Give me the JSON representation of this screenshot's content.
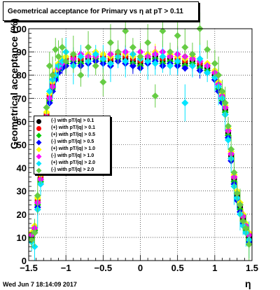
{
  "title": "Geometrical acceptance for Primary vs   η at pT > 0.11",
  "ylabel": "Geometrical acceptance (%)",
  "xlabel": "η",
  "timestamp": "Wed Jun  7 18:14:09 2017",
  "chart_data": {
    "type": "scatter",
    "title": "Geometrical acceptance for Primary vs   η at pT > 0.11",
    "xlabel": "η",
    "ylabel": "Geometrical acceptance (%)",
    "xlim": [
      -1.5,
      1.5
    ],
    "ylim": [
      0,
      100
    ],
    "xticks": [
      -1.5,
      -1,
      -0.5,
      0,
      0.5,
      1,
      1.5
    ],
    "yticks": [
      0,
      10,
      20,
      30,
      40,
      50,
      60,
      70,
      80,
      90,
      100
    ],
    "grid": true,
    "legend_position": "left-middle",
    "series": [
      {
        "name": "(-) with pT/|q| > 0.1",
        "color": "#000000",
        "marker": "circle",
        "x": [
          -1.46,
          -1.42,
          -1.38,
          -1.34,
          -1.3,
          -1.26,
          -1.22,
          -1.18,
          -1.14,
          -1.1,
          -1.05,
          -1.0,
          -0.9,
          -0.8,
          -0.7,
          -0.6,
          -0.5,
          -0.4,
          -0.3,
          -0.2,
          -0.1,
          0.0,
          0.1,
          0.2,
          0.3,
          0.4,
          0.5,
          0.6,
          0.7,
          0.8,
          0.9,
          1.0,
          1.05,
          1.1,
          1.14,
          1.18,
          1.22,
          1.26,
          1.3,
          1.34,
          1.38,
          1.42,
          1.46
        ],
        "y": [
          10,
          13,
          25,
          35,
          50,
          62,
          70,
          75,
          80,
          83,
          85,
          86,
          87,
          86,
          87,
          88,
          87,
          86,
          88,
          87,
          86,
          85,
          87,
          88,
          86,
          87,
          86,
          85,
          86,
          84,
          83,
          80,
          75,
          70,
          65,
          55,
          45,
          35,
          28,
          23,
          18,
          14,
          10
        ]
      },
      {
        "name": "(+) with pT/|q| > 0.1",
        "color": "#ff0000",
        "marker": "circle",
        "x": [
          -1.46,
          -1.42,
          -1.38,
          -1.34,
          -1.3,
          -1.26,
          -1.22,
          -1.18,
          -1.14,
          -1.1,
          -1.05,
          -1.0,
          -0.9,
          -0.8,
          -0.7,
          -0.6,
          -0.5,
          -0.4,
          -0.3,
          -0.2,
          -0.1,
          0.0,
          0.1,
          0.2,
          0.3,
          0.4,
          0.5,
          0.6,
          0.7,
          0.8,
          0.9,
          1.0,
          1.05,
          1.1,
          1.14,
          1.18,
          1.22,
          1.26,
          1.3,
          1.34,
          1.38,
          1.42,
          1.46
        ],
        "y": [
          11,
          14,
          26,
          36,
          51,
          63,
          71,
          76,
          81,
          84,
          86,
          87,
          88,
          87,
          88,
          89,
          88,
          87,
          89,
          88,
          87,
          86,
          88,
          89,
          87,
          88,
          87,
          86,
          87,
          85,
          84,
          81,
          76,
          71,
          66,
          56,
          46,
          36,
          29,
          24,
          19,
          15,
          11
        ]
      },
      {
        "name": "(+) with pT/|q| > 0.5",
        "color": "#00cc00",
        "marker": "diamond",
        "x": [
          -1.46,
          -1.42,
          -1.38,
          -1.34,
          -1.3,
          -1.26,
          -1.22,
          -1.18,
          -1.14,
          -1.1,
          -1.05,
          -1.0,
          -0.9,
          -0.8,
          -0.7,
          -0.6,
          -0.5,
          -0.4,
          -0.3,
          -0.2,
          -0.1,
          0.0,
          0.1,
          0.2,
          0.3,
          0.4,
          0.5,
          0.6,
          0.7,
          0.8,
          0.9,
          1.0,
          1.05,
          1.1,
          1.14,
          1.18,
          1.22,
          1.26,
          1.3,
          1.34,
          1.38,
          1.42,
          1.46
        ],
        "y": [
          10,
          13,
          24,
          34,
          49,
          61,
          69,
          74,
          79,
          82,
          84,
          85,
          86,
          85,
          86,
          87,
          86,
          85,
          87,
          86,
          85,
          84,
          86,
          87,
          85,
          86,
          85,
          84,
          85,
          83,
          82,
          79,
          74,
          69,
          64,
          54,
          44,
          34,
          27,
          22,
          17,
          13,
          9
        ]
      },
      {
        "name": "(-) with pT/|q| > 0.5",
        "color": "#0000ff",
        "marker": "diamond",
        "x": [
          -1.46,
          -1.42,
          -1.38,
          -1.34,
          -1.3,
          -1.26,
          -1.22,
          -1.18,
          -1.14,
          -1.1,
          -1.05,
          -1.0,
          -0.9,
          -0.8,
          -0.7,
          -0.6,
          -0.5,
          -0.4,
          -0.3,
          -0.2,
          -0.1,
          0.0,
          0.1,
          0.2,
          0.3,
          0.4,
          0.5,
          0.6,
          0.7,
          0.8,
          0.9,
          1.0,
          1.05,
          1.1,
          1.14,
          1.18,
          1.22,
          1.26,
          1.3,
          1.34,
          1.38,
          1.42,
          1.46
        ],
        "y": [
          9,
          12,
          23,
          33,
          48,
          60,
          68,
          73,
          78,
          81,
          83,
          84,
          85,
          84,
          85,
          86,
          85,
          84,
          86,
          85,
          84,
          83,
          85,
          86,
          84,
          85,
          84,
          83,
          84,
          82,
          81,
          78,
          73,
          68,
          63,
          53,
          43,
          33,
          26,
          21,
          16,
          12,
          8
        ]
      },
      {
        "name": "(+) with pT/|q| > 1.0",
        "color": "#ffff00",
        "marker": "diamond",
        "x": [
          -1.46,
          -1.42,
          -1.38,
          -1.34,
          -1.3,
          -1.26,
          -1.22,
          -1.18,
          -1.14,
          -1.1,
          -1.05,
          -1.0,
          -0.9,
          -0.8,
          -0.7,
          -0.6,
          -0.5,
          -0.4,
          -0.3,
          -0.2,
          -0.1,
          0.0,
          0.1,
          0.2,
          0.3,
          0.4,
          0.5,
          0.6,
          0.7,
          0.8,
          0.9,
          1.0,
          1.05,
          1.1,
          1.14,
          1.18,
          1.22,
          1.26,
          1.3,
          1.34,
          1.38,
          1.42,
          1.46
        ],
        "y": [
          12,
          15,
          27,
          37,
          52,
          64,
          72,
          77,
          82,
          85,
          87,
          88,
          89,
          88,
          89,
          90,
          89,
          88,
          90,
          89,
          88,
          87,
          89,
          90,
          88,
          89,
          88,
          87,
          88,
          86,
          85,
          82,
          77,
          72,
          67,
          57,
          47,
          37,
          30,
          25,
          20,
          16,
          12
        ]
      },
      {
        "name": "(-) with pT/|q| > 1.0",
        "color": "#ff00ff",
        "marker": "diamond",
        "x": [
          -1.46,
          -1.42,
          -1.38,
          -1.34,
          -1.3,
          -1.26,
          -1.22,
          -1.18,
          -1.14,
          -1.1,
          -1.05,
          -1.0,
          -0.9,
          -0.8,
          -0.7,
          -0.6,
          -0.5,
          -0.4,
          -0.3,
          -0.2,
          -0.1,
          0.0,
          0.1,
          0.2,
          0.3,
          0.4,
          0.5,
          0.6,
          0.7,
          0.8,
          0.9,
          1.0,
          1.05,
          1.1,
          1.14,
          1.18,
          1.22,
          1.26,
          1.3,
          1.34,
          1.38,
          1.42,
          1.46
        ],
        "y": [
          11,
          14,
          25,
          35,
          50,
          62,
          70,
          75,
          80,
          83,
          85,
          86,
          87,
          89,
          88,
          88,
          87,
          89,
          88,
          90,
          89,
          90,
          88,
          89,
          90,
          88,
          89,
          88,
          87,
          86,
          84,
          81,
          76,
          71,
          66,
          56,
          46,
          36,
          29,
          24,
          19,
          15,
          11
        ]
      },
      {
        "name": "(+) with pT/|q| > 2.0",
        "color": "#00e5ff",
        "marker": "diamond",
        "x": [
          -1.46,
          -1.42,
          -1.38,
          -1.34,
          -1.3,
          -1.26,
          -1.22,
          -1.18,
          -1.14,
          -1.1,
          -1.05,
          -1.0,
          -0.9,
          -0.8,
          -0.7,
          -0.6,
          -0.5,
          -0.4,
          -0.3,
          -0.2,
          -0.1,
          0.0,
          0.1,
          0.2,
          0.3,
          0.4,
          0.5,
          0.6,
          0.7,
          0.8,
          0.9,
          1.0,
          1.05,
          1.1,
          1.14,
          1.18,
          1.22,
          1.26,
          1.3,
          1.34,
          1.38,
          1.42,
          1.46
        ],
        "y": [
          8,
          6,
          22,
          33,
          47,
          59,
          73,
          78,
          80,
          84,
          86,
          90,
          84,
          88,
          86,
          89,
          87,
          85,
          88,
          86,
          89,
          87,
          86,
          85,
          88,
          84,
          86,
          68,
          84,
          87,
          81,
          79,
          75,
          70,
          63,
          52,
          44,
          32,
          27,
          20,
          15,
          12,
          9
        ]
      },
      {
        "name": "(-) with pT/|q| > 2.0",
        "color": "#66cc44",
        "marker": "diamond",
        "x": [
          -1.46,
          -1.42,
          -1.38,
          -1.34,
          -1.3,
          -1.26,
          -1.22,
          -1.18,
          -1.14,
          -1.1,
          -1.05,
          -1.0,
          -0.9,
          -0.8,
          -0.7,
          -0.6,
          -0.5,
          -0.4,
          -0.3,
          -0.2,
          -0.1,
          0.0,
          0.1,
          0.2,
          0.3,
          0.4,
          0.5,
          0.6,
          0.7,
          0.8,
          0.9,
          1.0,
          1.05,
          1.1,
          1.14,
          1.18,
          1.22,
          1.26,
          1.3,
          1.34,
          1.38,
          1.42,
          1.46
        ],
        "y": [
          9,
          12,
          28,
          38,
          53,
          66,
          84,
          80,
          91,
          88,
          92,
          86,
          89,
          80,
          92,
          84,
          77,
          94,
          90,
          99,
          92,
          88,
          94,
          71,
          99,
          90,
          97,
          92,
          89,
          100,
          91,
          85,
          80,
          73,
          68,
          58,
          48,
          38,
          29,
          24,
          17,
          14,
          7
        ]
      }
    ]
  }
}
